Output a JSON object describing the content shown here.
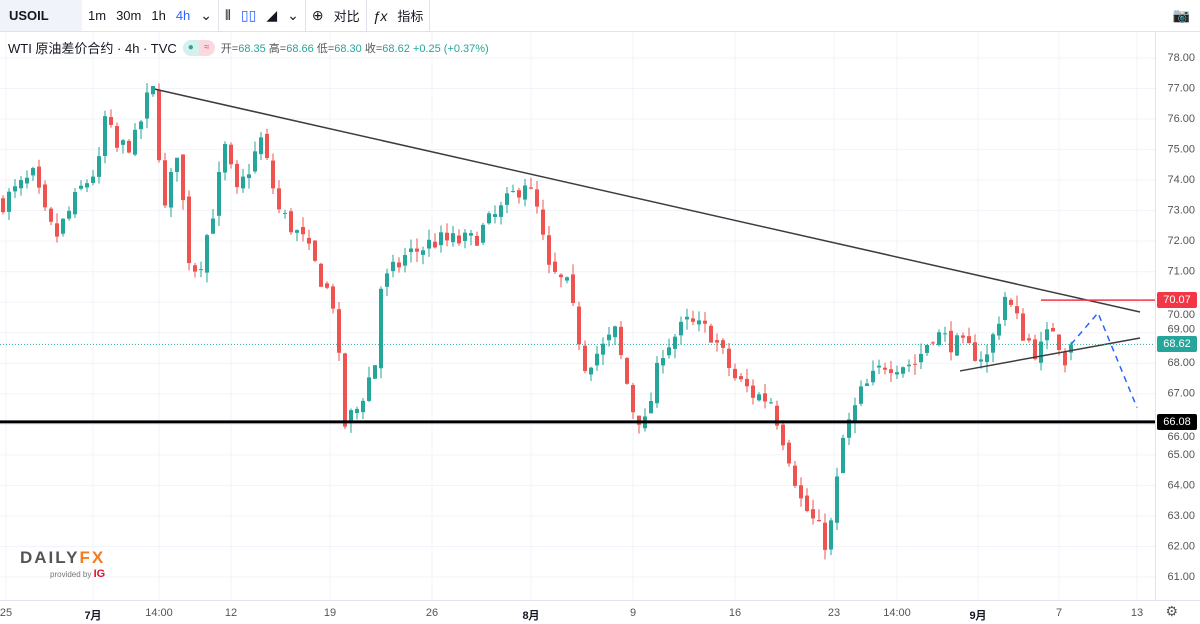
{
  "toolbar": {
    "symbol": "USOIL",
    "timeframes": [
      "1m",
      "30m",
      "1h",
      "4h"
    ],
    "active_timeframe": "4h",
    "compare_label": "对比",
    "indicators_label": "指标"
  },
  "legend": {
    "title": "WTI 原油差价合约 · 4h · TVC",
    "open_label": "开=",
    "open": "68.35",
    "high_label": "高=",
    "high": "68.66",
    "low_label": "低=",
    "low": "68.30",
    "close_label": "收=",
    "close": "68.62",
    "change": "+0.25 (+0.37%)"
  },
  "logo": {
    "brand": "DAILYFX",
    "provided_by": "provided by",
    "ig": "IG"
  },
  "colors": {
    "up": "#26a69a",
    "down": "#ef5350",
    "trend": "#3c3c3c",
    "resistance": "#f23645",
    "support": "#000000",
    "projection": "#2962ff"
  },
  "chart_data": {
    "type": "candlestick",
    "title": "WTI 原油差价合约 4h",
    "ylim": [
      60.6,
      78.6
    ],
    "yticks": [
      "78.00",
      "77.00",
      "76.00",
      "75.00",
      "74.00",
      "73.00",
      "72.00",
      "71.00",
      "70.00",
      "69.00",
      "68.00",
      "67.00",
      "66.00",
      "65.00",
      "64.00",
      "63.00",
      "62.00",
      "61.00"
    ],
    "xticks": [
      {
        "label": "25",
        "i": 0.5,
        "bold": false
      },
      {
        "label": "7月",
        "i": 15,
        "bold": true
      },
      {
        "label": "14:00",
        "i": 26,
        "bold": false
      },
      {
        "label": "12",
        "i": 38,
        "bold": false
      },
      {
        "label": "19",
        "i": 54.5,
        "bold": false
      },
      {
        "label": "26",
        "i": 71.5,
        "bold": false
      },
      {
        "label": "8月",
        "i": 88,
        "bold": true
      },
      {
        "label": "9",
        "i": 105,
        "bold": false
      },
      {
        "label": "16",
        "i": 122,
        "bold": false
      },
      {
        "label": "23",
        "i": 138.5,
        "bold": false
      },
      {
        "label": "14:00",
        "i": 149,
        "bold": false
      },
      {
        "label": "9月",
        "i": 162.5,
        "bold": true
      },
      {
        "label": "7",
        "i": 176,
        "bold": false
      },
      {
        "label": "13",
        "i": 189,
        "bold": false
      }
    ],
    "close_path": [
      [
        0,
        73.3
      ],
      [
        5,
        74.1
      ],
      [
        7.5,
        72.5
      ],
      [
        9,
        72.2
      ],
      [
        13,
        73.7
      ],
      [
        16,
        74.5
      ],
      [
        17,
        76.0
      ],
      [
        19,
        75.0
      ],
      [
        22,
        75.3
      ],
      [
        24,
        76.6
      ],
      [
        25,
        76.9
      ],
      [
        27,
        73.0
      ],
      [
        29,
        75.0
      ],
      [
        31,
        71.5
      ],
      [
        32.5,
        71.0
      ],
      [
        35,
        73.0
      ],
      [
        37,
        75.0
      ],
      [
        39,
        73.5
      ],
      [
        43,
        75.3
      ],
      [
        46,
        73.0
      ],
      [
        50,
        72.0
      ],
      [
        55,
        70.0
      ],
      [
        57,
        66.0
      ],
      [
        59,
        66.5
      ],
      [
        62,
        68.0
      ],
      [
        63,
        70.5
      ],
      [
        67,
        71.5
      ],
      [
        72,
        72.0
      ],
      [
        78,
        72.0
      ],
      [
        83,
        73.0
      ],
      [
        87,
        74.0
      ],
      [
        89,
        73.0
      ],
      [
        91,
        71.0
      ],
      [
        94,
        70.5
      ],
      [
        97,
        68.0
      ],
      [
        100,
        68.5
      ],
      [
        102,
        69.0
      ],
      [
        105,
        66.5
      ],
      [
        107,
        66.0
      ],
      [
        110,
        68.5
      ],
      [
        114,
        69.3
      ],
      [
        118,
        69.0
      ],
      [
        122,
        67.5
      ],
      [
        125,
        67.0
      ],
      [
        128,
        66.8
      ],
      [
        131,
        65.0
      ],
      [
        133,
        63.5
      ],
      [
        137.5,
        62.0
      ],
      [
        140,
        65.5
      ],
      [
        143,
        67.0
      ],
      [
        147,
        68.0
      ],
      [
        152,
        68.0
      ],
      [
        155,
        69.0
      ],
      [
        160,
        68.5
      ],
      [
        164,
        68.2
      ],
      [
        167,
        70.2
      ],
      [
        170,
        69.0
      ],
      [
        172.5,
        68.3
      ],
      [
        175,
        69.2
      ],
      [
        177,
        68.2
      ],
      [
        178,
        68.62
      ]
    ],
    "lines": [
      {
        "name": "descending-trendline",
        "from": [
          25.3,
          76.98
        ],
        "to": [
          189.5,
          69.68
        ],
        "color": "#3c3c3c"
      },
      {
        "name": "ascending-trendline",
        "from": [
          159.5,
          67.75
        ],
        "to": [
          189.5,
          68.83
        ],
        "color": "#3c3c3c"
      }
    ],
    "resistance": {
      "value": 70.07,
      "label": "70.07",
      "from": 173
    },
    "support": {
      "value": 66.08,
      "label": "66.08"
    },
    "last_price": {
      "value": 68.62,
      "label": "68.62"
    },
    "projection": [
      [
        178,
        68.62
      ],
      [
        182.5,
        69.65
      ],
      [
        189,
        66.55
      ]
    ]
  }
}
